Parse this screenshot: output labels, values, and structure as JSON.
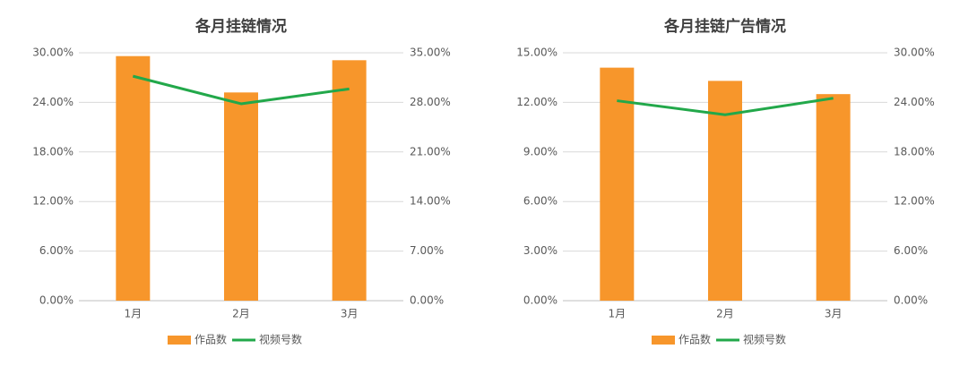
{
  "chart_data": [
    {
      "type": "bar",
      "title": "各月挂链情况",
      "categories": [
        "1月",
        "2月",
        "3月"
      ],
      "series": [
        {
          "name": "作品数",
          "type": "bar",
          "color": "#f7962b",
          "values": [
            29.6,
            25.2,
            29.1
          ]
        },
        {
          "name": "视频号数",
          "type": "line",
          "axis": "y2",
          "color": "#22a84a",
          "values": [
            31.7,
            27.8,
            29.9
          ]
        }
      ],
      "ylim": [
        0,
        30
      ],
      "yticks": [
        {
          "value": 0,
          "label": "0.00%"
        },
        {
          "value": 6,
          "label": "6.00%"
        },
        {
          "value": 12,
          "label": "12.00%"
        },
        {
          "value": 18,
          "label": "18.00%"
        },
        {
          "value": 24,
          "label": "24.00%"
        },
        {
          "value": 30,
          "label": "30.00%"
        }
      ],
      "y2lim": [
        0,
        35
      ],
      "y2ticks": [
        {
          "value": 0,
          "label": "0.00%"
        },
        {
          "value": 7,
          "label": "7.00%"
        },
        {
          "value": 14,
          "label": "14.00%"
        },
        {
          "value": 21,
          "label": "21.00%"
        },
        {
          "value": 28,
          "label": "28.00%"
        },
        {
          "value": 35,
          "label": "35.00%"
        }
      ],
      "grid": true,
      "legend": "bottom"
    },
    {
      "type": "bar",
      "title": "各月挂链广告情况",
      "categories": [
        "1月",
        "2月",
        "3月"
      ],
      "series": [
        {
          "name": "作品数",
          "type": "bar",
          "color": "#f7962b",
          "values": [
            14.1,
            13.3,
            12.5
          ]
        },
        {
          "name": "视频号数",
          "type": "line",
          "axis": "y2",
          "color": "#22a84a",
          "values": [
            24.2,
            22.5,
            24.5
          ]
        }
      ],
      "ylim": [
        0,
        15
      ],
      "yticks": [
        {
          "value": 0,
          "label": "0.00%"
        },
        {
          "value": 3,
          "label": "3.00%"
        },
        {
          "value": 6,
          "label": "6.00%"
        },
        {
          "value": 9,
          "label": "9.00%"
        },
        {
          "value": 12,
          "label": "12.00%"
        },
        {
          "value": 15,
          "label": "15.00%"
        }
      ],
      "y2lim": [
        0,
        30
      ],
      "y2ticks": [
        {
          "value": 0,
          "label": "0.00%"
        },
        {
          "value": 6,
          "label": "6.00%"
        },
        {
          "value": 12,
          "label": "12.00%"
        },
        {
          "value": 18,
          "label": "18.00%"
        },
        {
          "value": 24,
          "label": "24.00%"
        },
        {
          "value": 30,
          "label": "30.00%"
        }
      ],
      "grid": true,
      "legend": "bottom"
    }
  ]
}
